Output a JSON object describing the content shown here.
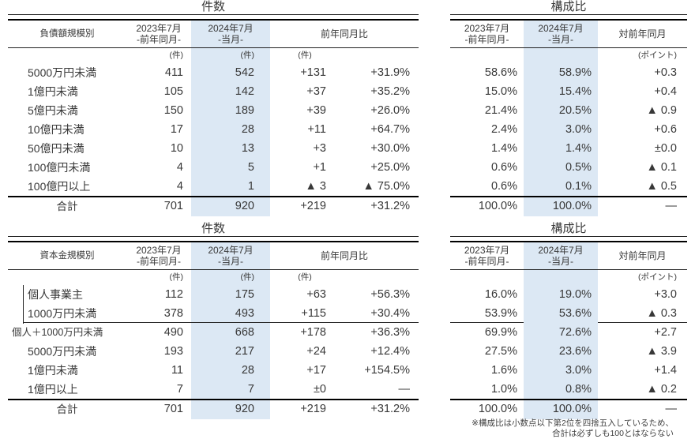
{
  "colors": {
    "highlight_bg": "#dce8f4",
    "text": "#383838",
    "line": "#000000"
  },
  "columns": {
    "y2023": "2023年7月",
    "y2023_sub": "-前年同月-",
    "y2024": "2024年7月",
    "y2024_sub": "-当月-",
    "count_diff": "前年同月比",
    "ratio_diff": "対前年同月",
    "count_unit": "(件)",
    "ratio_unit": "(ポイント)"
  },
  "sections": [
    {
      "count_title": "件数",
      "ratio_title": "構成比",
      "row_header": "負債額規模別",
      "rows": [
        {
          "label": "5000万円未満",
          "indent": true,
          "count": [
            "411",
            "542",
            "+131",
            "+31.9%"
          ],
          "ratio": [
            "58.6%",
            "58.9%",
            "+0.3"
          ]
        },
        {
          "label": "1億円未満",
          "indent": true,
          "count": [
            "105",
            "142",
            "+37",
            "+35.2%"
          ],
          "ratio": [
            "15.0%",
            "15.4%",
            "+0.4"
          ]
        },
        {
          "label": "5億円未満",
          "indent": true,
          "count": [
            "150",
            "189",
            "+39",
            "+26.0%"
          ],
          "ratio": [
            "21.4%",
            "20.5%",
            "▲ 0.9"
          ]
        },
        {
          "label": "10億円未満",
          "indent": true,
          "count": [
            "17",
            "28",
            "+11",
            "+64.7%"
          ],
          "ratio": [
            "2.4%",
            "3.0%",
            "+0.6"
          ]
        },
        {
          "label": "50億円未満",
          "indent": true,
          "count": [
            "10",
            "13",
            "+3",
            "+30.0%"
          ],
          "ratio": [
            "1.4%",
            "1.4%",
            "±0.0"
          ]
        },
        {
          "label": "100億円未満",
          "indent": true,
          "count": [
            "4",
            "5",
            "+1",
            "+25.0%"
          ],
          "ratio": [
            "0.6%",
            "0.5%",
            "▲ 0.1"
          ]
        },
        {
          "label": "100億円以上",
          "indent": true,
          "count": [
            "4",
            "1",
            "▲ 3",
            "▲ 75.0%"
          ],
          "ratio": [
            "0.6%",
            "0.1%",
            "▲ 0.5"
          ]
        }
      ],
      "total": {
        "label": "合計",
        "count": [
          "701",
          "920",
          "+219",
          "+31.2%"
        ],
        "ratio": [
          "100.0%",
          "100.0%",
          "—"
        ]
      }
    },
    {
      "count_title": "件数",
      "ratio_title": "構成比",
      "row_header": "資本金規模別",
      "rows": [
        {
          "label": "個人事業主",
          "indent": true,
          "bracket": true,
          "count": [
            "112",
            "175",
            "+63",
            "+56.3%"
          ],
          "ratio": [
            "16.0%",
            "19.0%",
            "+3.0"
          ]
        },
        {
          "label": "1000万円未満",
          "indent": true,
          "bracket": true,
          "rule_below": true,
          "count": [
            "378",
            "493",
            "+115",
            "+30.4%"
          ],
          "ratio": [
            "53.9%",
            "53.6%",
            "▲ 0.3"
          ]
        },
        {
          "label": "個人＋1000万円未満",
          "indent": false,
          "small": true,
          "count": [
            "490",
            "668",
            "+178",
            "+36.3%"
          ],
          "ratio": [
            "69.9%",
            "72.6%",
            "+2.7"
          ]
        },
        {
          "label": "5000万円未満",
          "indent": true,
          "count": [
            "193",
            "217",
            "+24",
            "+12.4%"
          ],
          "ratio": [
            "27.5%",
            "23.6%",
            "▲ 3.9"
          ]
        },
        {
          "label": "1億円未満",
          "indent": true,
          "count": [
            "11",
            "28",
            "+17",
            "+154.5%"
          ],
          "ratio": [
            "1.6%",
            "3.0%",
            "+1.4"
          ]
        },
        {
          "label": "1億円以上",
          "indent": true,
          "count": [
            "7",
            "7",
            "±0",
            "—"
          ],
          "ratio": [
            "1.0%",
            "0.8%",
            "▲ 0.2"
          ]
        }
      ],
      "total": {
        "label": "合計",
        "count": [
          "701",
          "920",
          "+219",
          "+31.2%"
        ],
        "ratio": [
          "100.0%",
          "100.0%",
          "—"
        ]
      }
    }
  ],
  "footnote": {
    "line1": "※構成比は小数点以下第2位を四捨五入しているため、",
    "line2": "合計は必ずしも100とはならない"
  }
}
